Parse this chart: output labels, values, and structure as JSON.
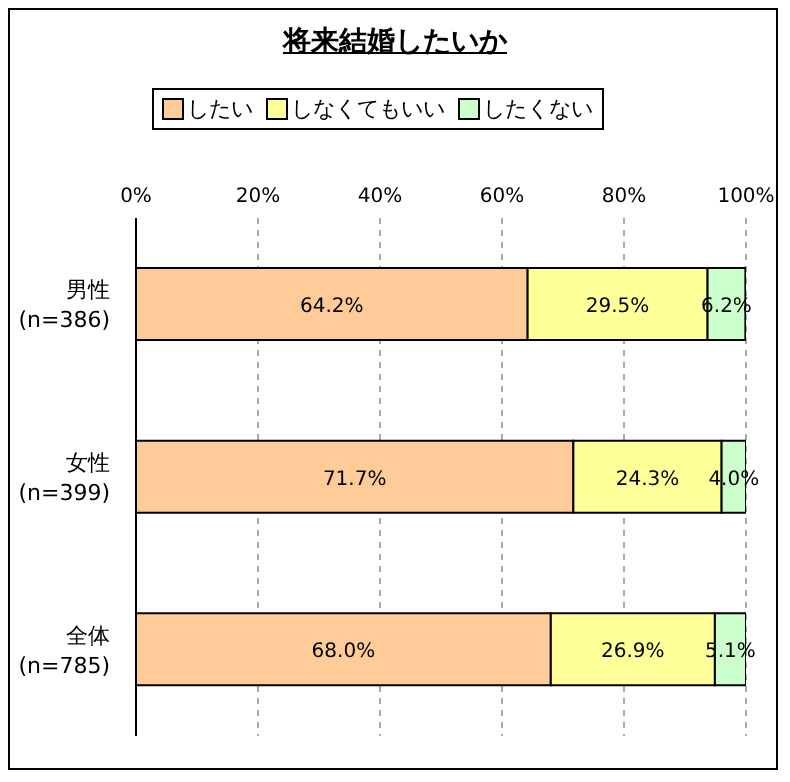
{
  "chart_data": {
    "type": "bar",
    "title": "将来結婚したいか",
    "orientation": "horizontal",
    "stacked": true,
    "categories": [
      "男性\n(n=386)",
      "女性\n(n=399)",
      "全体\n(n=785)"
    ],
    "series": [
      {
        "name": "したい",
        "color": "#ffcc99",
        "values": [
          64.2,
          71.7,
          68.0
        ],
        "value_labels": [
          "64.2%",
          "71.7%",
          "68.0%"
        ]
      },
      {
        "name": "しなくてもいい",
        "color": "#ffff99",
        "values": [
          29.5,
          24.3,
          26.9
        ],
        "value_labels": [
          "29.5%",
          "24.3%",
          "26.9%"
        ]
      },
      {
        "name": "したくない",
        "color": "#ccffcc",
        "values": [
          6.2,
          4.0,
          5.1
        ],
        "value_labels": [
          "6.2%",
          "4.0%",
          "5.1%"
        ]
      }
    ],
    "xlim": [
      0,
      100
    ],
    "xticks": [
      {
        "value": 0,
        "label": "0%"
      },
      {
        "value": 20,
        "label": "20%"
      },
      {
        "value": 40,
        "label": "40%"
      },
      {
        "value": 60,
        "label": "60%"
      },
      {
        "value": 80,
        "label": "80%"
      },
      {
        "value": 100,
        "label": "100%"
      }
    ],
    "grid": "x",
    "legend": "top"
  }
}
